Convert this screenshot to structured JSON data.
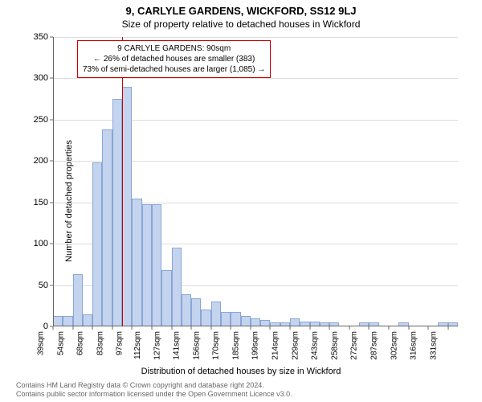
{
  "title_main": "9, CARLYLE GARDENS, WICKFORD, SS12 9LJ",
  "title_sub": "Size of property relative to detached houses in Wickford",
  "chart": {
    "type": "histogram",
    "y_axis_label": "Number of detached properties",
    "x_axis_label": "Distribution of detached houses by size in Wickford",
    "ylim": [
      0,
      350
    ],
    "ytick_step": 50,
    "xtick_labels": [
      "39sqm",
      "54sqm",
      "68sqm",
      "83sqm",
      "97sqm",
      "112sqm",
      "127sqm",
      "141sqm",
      "156sqm",
      "170sqm",
      "185sqm",
      "199sqm",
      "214sqm",
      "229sqm",
      "243sqm",
      "258sqm",
      "272sqm",
      "287sqm",
      "302sqm",
      "316sqm",
      "331sqm"
    ],
    "values": [
      13,
      13,
      63,
      15,
      198,
      238,
      275,
      290,
      155,
      148,
      148,
      68,
      95,
      39,
      34,
      20,
      30,
      18,
      18,
      13,
      10,
      8,
      5,
      5,
      10,
      6,
      6,
      5,
      5,
      0,
      0,
      5,
      5,
      0,
      0,
      5,
      0,
      0,
      0,
      5,
      5
    ],
    "bar_color": "#c4d4ef",
    "bar_border_color": "#8aa6d6",
    "grid_color": "#dddddd",
    "axis_color": "#666666",
    "background_color": "#ffffff",
    "marker": {
      "x_index": 7,
      "color": "#cc0000"
    },
    "annotation": {
      "lines": [
        "9 CARLYLE GARDENS: 90sqm",
        "← 26% of detached houses are smaller (383)",
        "73% of semi-detached houses are larger (1,085) →"
      ],
      "border_color": "#cc0000",
      "background_color": "#ffffff"
    }
  },
  "footer_lines": [
    "Contains HM Land Registry data © Crown copyright and database right 2024.",
    "Contains public sector information licensed under the Open Government Licence v3.0."
  ]
}
